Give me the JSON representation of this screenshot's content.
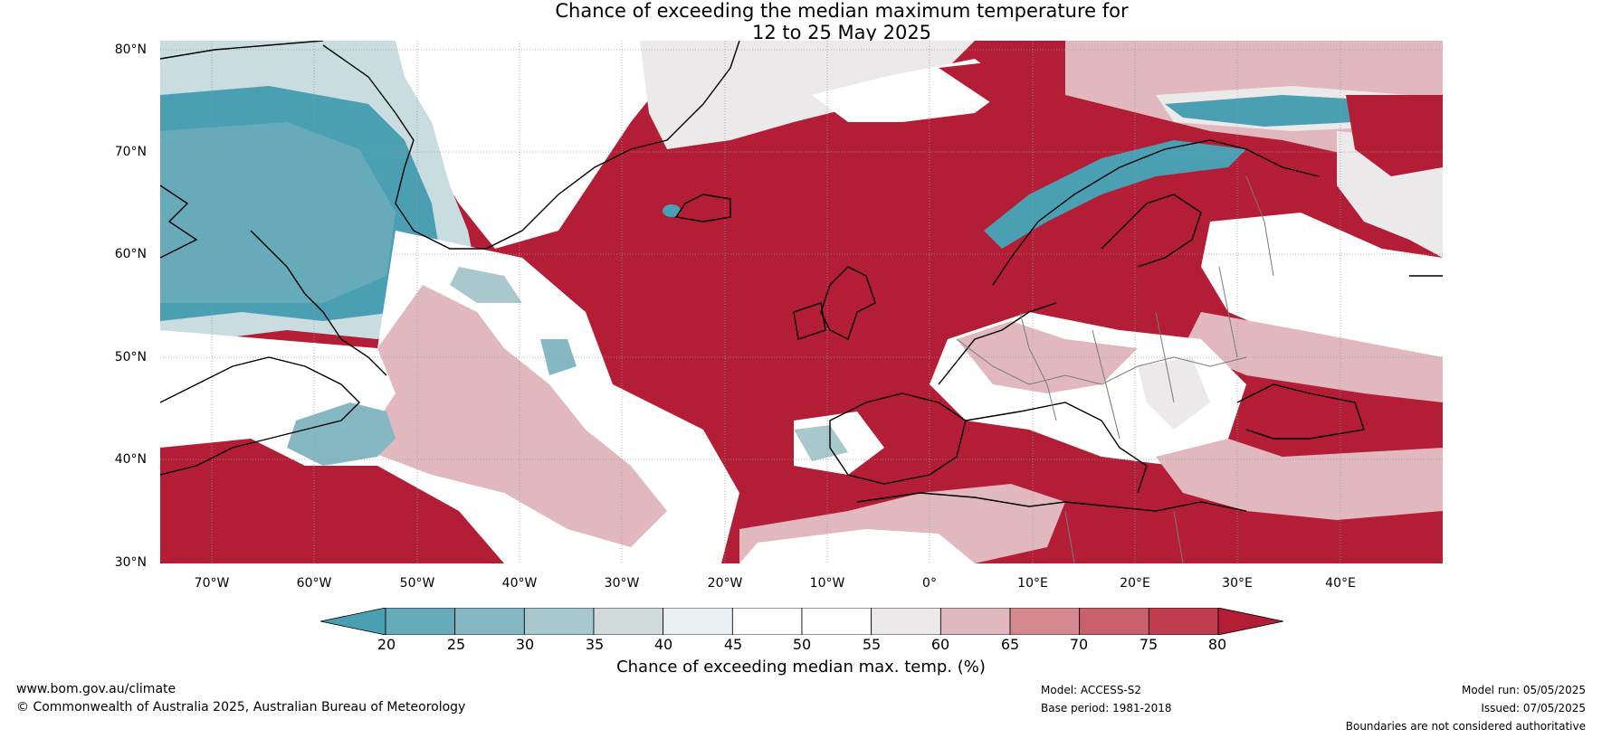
{
  "title_line1": "Chance of exceeding the median maximum temperature for",
  "title_line2": "12 to 25 May 2025",
  "latitude_labels": [
    "80°N",
    "70°N",
    "60°N",
    "50°N",
    "40°N",
    "30°N"
  ],
  "longitude_labels": [
    "70°W",
    "60°W",
    "50°W",
    "40°W",
    "30°W",
    "20°W",
    "10°W",
    "0°",
    "10°E",
    "20°E",
    "30°E",
    "40°E"
  ],
  "colorbar": {
    "ticks": [
      "20",
      "25",
      "30",
      "35",
      "40",
      "45",
      "50",
      "55",
      "60",
      "65",
      "70",
      "75",
      "80"
    ],
    "colors": [
      "#4aa0b2",
      "#67abbb",
      "#86b8c4",
      "#a9c8cd",
      "#d0dadb",
      "#eaf0f2",
      "#ffffff",
      "#ffffff",
      "#ebe9e9",
      "#e0b8be",
      "#d48890",
      "#c9616c",
      "#be3d4e",
      "#b31d36"
    ],
    "label": "Chance of exceeding median max. temp. (%)"
  },
  "footer": {
    "website": "www.bom.gov.au/climate",
    "copyright": "© Commonwealth of Australia 2025, Australian Bureau of Meteorology",
    "model": "Model: ACCESS-S2",
    "base_period": "Base period: 1981-2018",
    "model_run": "Model run: 05/05/2025",
    "issued": "Issued: 07/05/2025",
    "disclaimer": "Boundaries are not considered authoritative"
  }
}
